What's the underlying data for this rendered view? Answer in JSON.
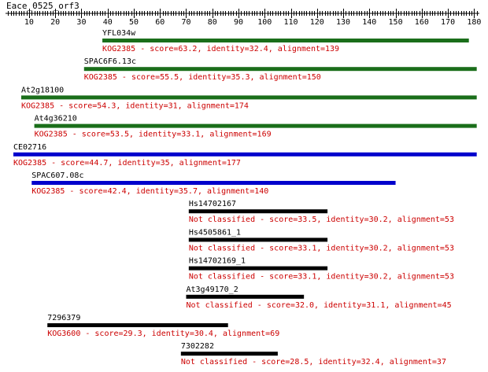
{
  "chart_data": {
    "type": "alignment-track",
    "title": "Eace_0525_orf3",
    "xlim": [
      1,
      182
    ],
    "ticks": [
      10,
      20,
      30,
      40,
      50,
      60,
      70,
      80,
      90,
      100,
      110,
      120,
      130,
      140,
      150,
      160,
      170,
      180
    ],
    "colors": {
      "high": "#1a6e1a",
      "medium": "#0000cc",
      "low": "#000000",
      "desc": "#cc0000"
    },
    "hits": [
      {
        "name": "YFL034w",
        "start": 38,
        "end": 178,
        "class": "high",
        "desc": "KOG2385 - score=63.2, identity=32.4, alignment=139"
      },
      {
        "name": "SPAC6F6.13c",
        "start": 31,
        "end": 181,
        "class": "high",
        "desc": "KOG2385 - score=55.5, identity=35.3, alignment=150"
      },
      {
        "name": "At2g18100",
        "start": 7,
        "end": 181,
        "class": "high",
        "desc": "KOG2385 - score=54.3, identity=31, alignment=174"
      },
      {
        "name": "At4g36210",
        "start": 12,
        "end": 181,
        "class": "high",
        "desc": "KOG2385 - score=53.5, identity=33.1, alignment=169"
      },
      {
        "name": "CE02716",
        "start": 4,
        "end": 181,
        "class": "medium",
        "desc": "KOG2385 - score=44.7, identity=35, alignment=177"
      },
      {
        "name": "SPAC607.08c",
        "start": 11,
        "end": 150,
        "class": "medium",
        "desc": "KOG2385 - score=42.4, identity=35.7, alignment=140"
      },
      {
        "name": "Hs14702167",
        "start": 71,
        "end": 124,
        "class": "low",
        "desc": "Not classified - score=33.5, identity=30.2, alignment=53"
      },
      {
        "name": "Hs4505861_1",
        "start": 71,
        "end": 124,
        "class": "low",
        "desc": "Not classified - score=33.1, identity=30.2, alignment=53"
      },
      {
        "name": "Hs14702169_1",
        "start": 71,
        "end": 124,
        "class": "low",
        "desc": "Not classified - score=33.1, identity=30.2, alignment=53"
      },
      {
        "name": "At3g49170_2",
        "start": 70,
        "end": 115,
        "class": "low",
        "desc": "Not classified - score=32.0, identity=31.1, alignment=45"
      },
      {
        "name": "7296379",
        "start": 17,
        "end": 86,
        "class": "low",
        "desc": "KOG3600 - score=29.3, identity=30.4, alignment=69"
      },
      {
        "name": "7302282",
        "start": 68,
        "end": 105,
        "class": "low",
        "desc": "Not classified - score=28.5, identity=32.4, alignment=37"
      }
    ]
  }
}
